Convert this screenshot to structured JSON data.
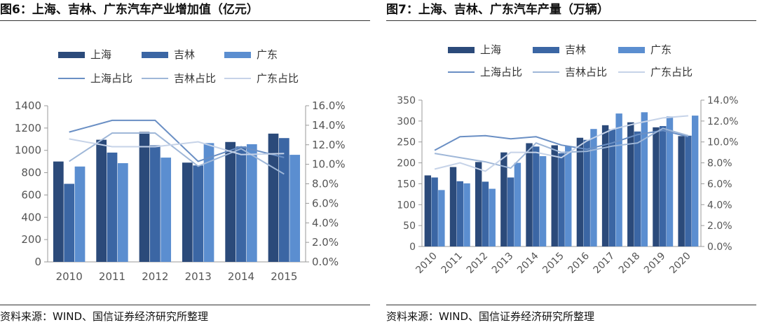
{
  "colors": {
    "bar_shanghai": "#2b4a7a",
    "bar_jilin": "#3b66a4",
    "bar_guangdong": "#5b8ed0",
    "line_shanghai": "#6a8fc4",
    "line_jilin": "#9fb7d8",
    "line_guangdong": "#c6d3e8",
    "axis": "#999999",
    "tick_text": "#555555"
  },
  "chart_data": [
    {
      "type": "bar",
      "title": "图6：上海、吉林、广东汽车产业增加值（亿元）",
      "source": "资料来源：WIND、国信证券经济研究所整理",
      "categories": [
        "2010",
        "2011",
        "2012",
        "2013",
        "2014",
        "2015"
      ],
      "series": [
        {
          "name": "上海",
          "values": [
            900,
            1095,
            1165,
            890,
            1075,
            1150
          ]
        },
        {
          "name": "吉林",
          "values": [
            700,
            980,
            1045,
            865,
            1035,
            1110
          ]
        },
        {
          "name": "广东",
          "values": [
            855,
            885,
            935,
            1065,
            1055,
            960
          ]
        }
      ],
      "line_series": [
        {
          "name": "上海占比",
          "values": [
            13.3,
            14.5,
            14.5,
            10.3,
            11.8,
            10.7
          ]
        },
        {
          "name": "吉林占比",
          "values": [
            10.3,
            13.2,
            13.2,
            9.8,
            11.6,
            9.0
          ]
        },
        {
          "name": "广东占比",
          "values": [
            12.6,
            11.8,
            11.8,
            12.3,
            11.0,
            11.1
          ]
        }
      ],
      "ylim": [
        0,
        1400
      ],
      "y_ticks": [
        "0",
        "200",
        "400",
        "600",
        "800",
        "1000",
        "1200",
        "1400"
      ],
      "y2lim": [
        0,
        16
      ],
      "y2_ticks": [
        "0.0%",
        "2.0%",
        "4.0%",
        "6.0%",
        "8.0%",
        "10.0%",
        "12.0%",
        "14.0%",
        "16.0%"
      ],
      "legend_position": "top",
      "grid": false
    },
    {
      "type": "bar",
      "title": "图7：上海、吉林、广东汽车产量（万辆）",
      "source": "资料来源：WIND、国信证券经济研究所整理",
      "categories": [
        "2010",
        "2011",
        "2012",
        "2013",
        "2014",
        "2015",
        "2016",
        "2017",
        "2018",
        "2019",
        "2020"
      ],
      "series": [
        {
          "name": "上海",
          "values": [
            170,
            190,
            202,
            225,
            247,
            242,
            260,
            290,
            297,
            285,
            264
          ]
        },
        {
          "name": "吉林",
          "values": [
            165,
            156,
            155,
            165,
            239,
            223,
            255,
            280,
            275,
            288,
            265
          ]
        },
        {
          "name": "广东",
          "values": [
            135,
            151,
            138,
            200,
            216,
            240,
            281,
            318,
            321,
            311,
            313
          ]
        }
      ],
      "line_series": [
        {
          "name": "上海占比",
          "values": [
            9.2,
            10.5,
            10.6,
            10.3,
            10.5,
            9.7,
            9.3,
            9.9,
            10.7,
            11.1,
            10.5
          ]
        },
        {
          "name": "吉林占比",
          "values": [
            8.9,
            8.5,
            8.1,
            7.5,
            9.9,
            9.0,
            9.1,
            9.6,
            9.9,
            11.3,
            10.6
          ]
        },
        {
          "name": "广东占比",
          "values": [
            7.4,
            8.0,
            7.2,
            9.0,
            9.0,
            8.5,
            10.1,
            11.2,
            11.8,
            12.3,
            12.5
          ]
        }
      ],
      "ylim": [
        0,
        350
      ],
      "y_ticks": [
        "0",
        "50",
        "100",
        "150",
        "200",
        "250",
        "300",
        "350"
      ],
      "y2lim": [
        0,
        14
      ],
      "y2_ticks": [
        "0.0%",
        "2.0%",
        "4.0%",
        "6.0%",
        "8.0%",
        "10.0%",
        "12.0%",
        "14.0%"
      ],
      "x_label_rotation": -45,
      "legend_position": "top",
      "grid": false
    }
  ]
}
